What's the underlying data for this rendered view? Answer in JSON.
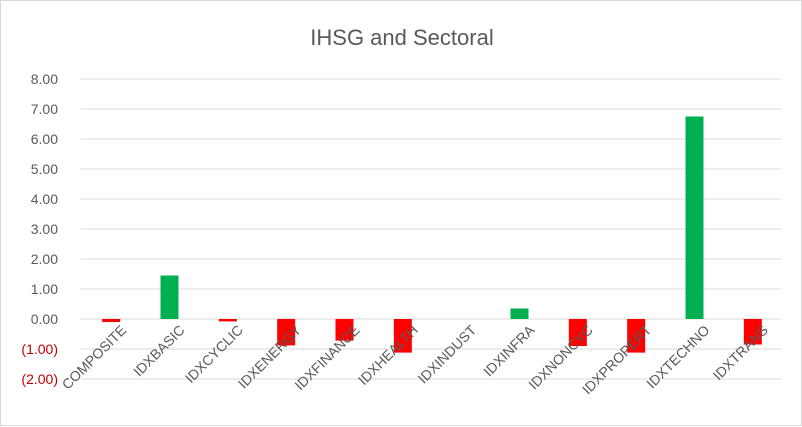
{
  "chart_data": {
    "type": "bar",
    "title": "IHSG and Sectoral",
    "xlabel": "",
    "ylabel": "",
    "ylim": [
      -2,
      8
    ],
    "y_ticks": [
      {
        "value": 8,
        "label": "8.00"
      },
      {
        "value": 7,
        "label": "7.00"
      },
      {
        "value": 6,
        "label": "6.00"
      },
      {
        "value": 5,
        "label": "5.00"
      },
      {
        "value": 4,
        "label": "4.00"
      },
      {
        "value": 3,
        "label": "3.00"
      },
      {
        "value": 2,
        "label": "2.00"
      },
      {
        "value": 1,
        "label": "1.00"
      },
      {
        "value": 0,
        "label": "0.00"
      },
      {
        "value": -1,
        "label": "(1.00)"
      },
      {
        "value": -2,
        "label": "(2.00)"
      }
    ],
    "grid": true,
    "legend": "none",
    "categories": [
      "COMPOSITE",
      "IDXBASIC",
      "IDXCYCLIC",
      "IDXENERGY",
      "IDXFINANCE",
      "IDXHEALTH",
      "IDXINDUST",
      "IDXINFRA",
      "IDXNONCYC",
      "IDXPROPERT",
      "IDXTECHNO",
      "IDXTRANS"
    ],
    "series": [
      {
        "name": "",
        "values": [
          -0.1,
          1.45,
          -0.08,
          -0.88,
          -0.72,
          -1.12,
          0,
          0.35,
          -0.9,
          -1.12,
          6.75,
          -0.85
        ]
      }
    ],
    "colors": {
      "positive": "#00b050",
      "negative": "#ff0000",
      "negative_label": "#c00000",
      "text": "#595959",
      "title": "#595959",
      "grid": "#d9d9d9"
    }
  }
}
